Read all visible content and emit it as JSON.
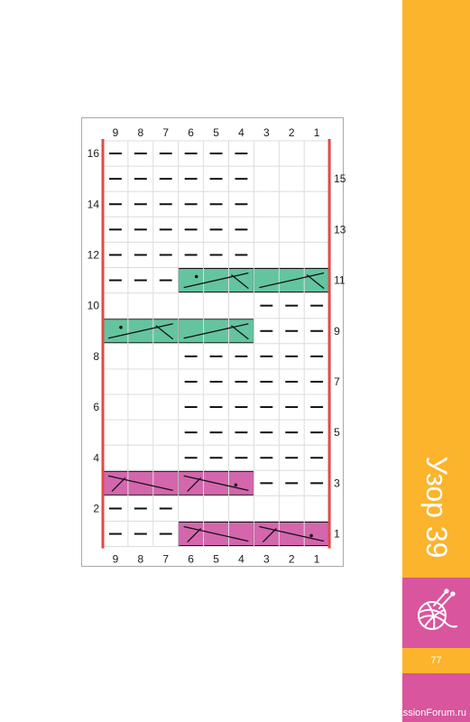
{
  "sidebar": {
    "title": "Узор 39",
    "page_number": "77",
    "watermark": "PassionForum.ru",
    "icon": "yarn-ball-icon",
    "colors": {
      "yellow": "#fbb42b",
      "pink": "#d9559e"
    }
  },
  "chart": {
    "column_labels_top": [
      "9",
      "8",
      "7",
      "6",
      "5",
      "4",
      "3",
      "2",
      "1"
    ],
    "column_labels_bottom": [
      "9",
      "8",
      "7",
      "6",
      "5",
      "4",
      "3",
      "2",
      "1"
    ],
    "left_row_labels": [
      "16",
      "14",
      "12",
      "10",
      "8",
      "6",
      "4",
      "2"
    ],
    "right_row_labels": [
      "15",
      "13",
      "11",
      "9",
      "7",
      "5",
      "3",
      "1"
    ],
    "colors": {
      "green": "#64c4a0",
      "magenta": "#d466ad",
      "border": "#e04a4a",
      "grid": "#dcdcdc"
    },
    "rows": [
      {
        "row": 16,
        "purl_columns": [
          9,
          8,
          7,
          6,
          5,
          4
        ]
      },
      {
        "row": 15,
        "purl_columns": [
          9,
          8,
          7,
          6,
          5,
          4
        ]
      },
      {
        "row": 14,
        "purl_columns": [
          9,
          8,
          7,
          6,
          5,
          4
        ]
      },
      {
        "row": 13,
        "purl_columns": [
          9,
          8,
          7,
          6,
          5,
          4
        ]
      },
      {
        "row": 12,
        "purl_columns": [
          9,
          8,
          7,
          6,
          5,
          4
        ]
      },
      {
        "row": 11,
        "purl_columns": [
          9,
          8,
          7
        ],
        "cables": [
          {
            "columns": [
              6,
              5,
              4
            ],
            "color": "green",
            "slant": "right",
            "dot": "left"
          },
          {
            "columns": [
              3,
              2,
              1
            ],
            "color": "green",
            "slant": "right",
            "dot": "none"
          }
        ]
      },
      {
        "row": 10,
        "purl_columns": [
          3,
          2,
          1
        ]
      },
      {
        "row": 9,
        "purl_columns": [
          3,
          2,
          1
        ],
        "cables": [
          {
            "columns": [
              9,
              8,
              7
            ],
            "color": "green",
            "slant": "right",
            "dot": "left"
          },
          {
            "columns": [
              6,
              5,
              4
            ],
            "color": "green",
            "slant": "right",
            "dot": "none"
          }
        ]
      },
      {
        "row": 8,
        "purl_columns": [
          6,
          5,
          4,
          3,
          2,
          1
        ]
      },
      {
        "row": 7,
        "purl_columns": [
          6,
          5,
          4,
          3,
          2,
          1
        ]
      },
      {
        "row": 6,
        "purl_columns": [
          6,
          5,
          4,
          3,
          2,
          1
        ]
      },
      {
        "row": 5,
        "purl_columns": [
          6,
          5,
          4,
          3,
          2,
          1
        ]
      },
      {
        "row": 4,
        "purl_columns": [
          6,
          5,
          4,
          3,
          2,
          1
        ]
      },
      {
        "row": 3,
        "purl_columns": [
          3,
          2,
          1
        ],
        "cables": [
          {
            "columns": [
              9,
              8,
              7
            ],
            "color": "magenta",
            "slant": "left",
            "dot": "none"
          },
          {
            "columns": [
              6,
              5,
              4
            ],
            "color": "magenta",
            "slant": "left",
            "dot": "right"
          }
        ]
      },
      {
        "row": 2,
        "purl_columns": [
          9,
          8,
          7
        ]
      },
      {
        "row": 1,
        "purl_columns": [
          9,
          8,
          7
        ],
        "cables": [
          {
            "columns": [
              6,
              5,
              4
            ],
            "color": "magenta",
            "slant": "left",
            "dot": "none"
          },
          {
            "columns": [
              3,
              2,
              1
            ],
            "color": "magenta",
            "slant": "left",
            "dot": "right"
          }
        ]
      }
    ]
  }
}
